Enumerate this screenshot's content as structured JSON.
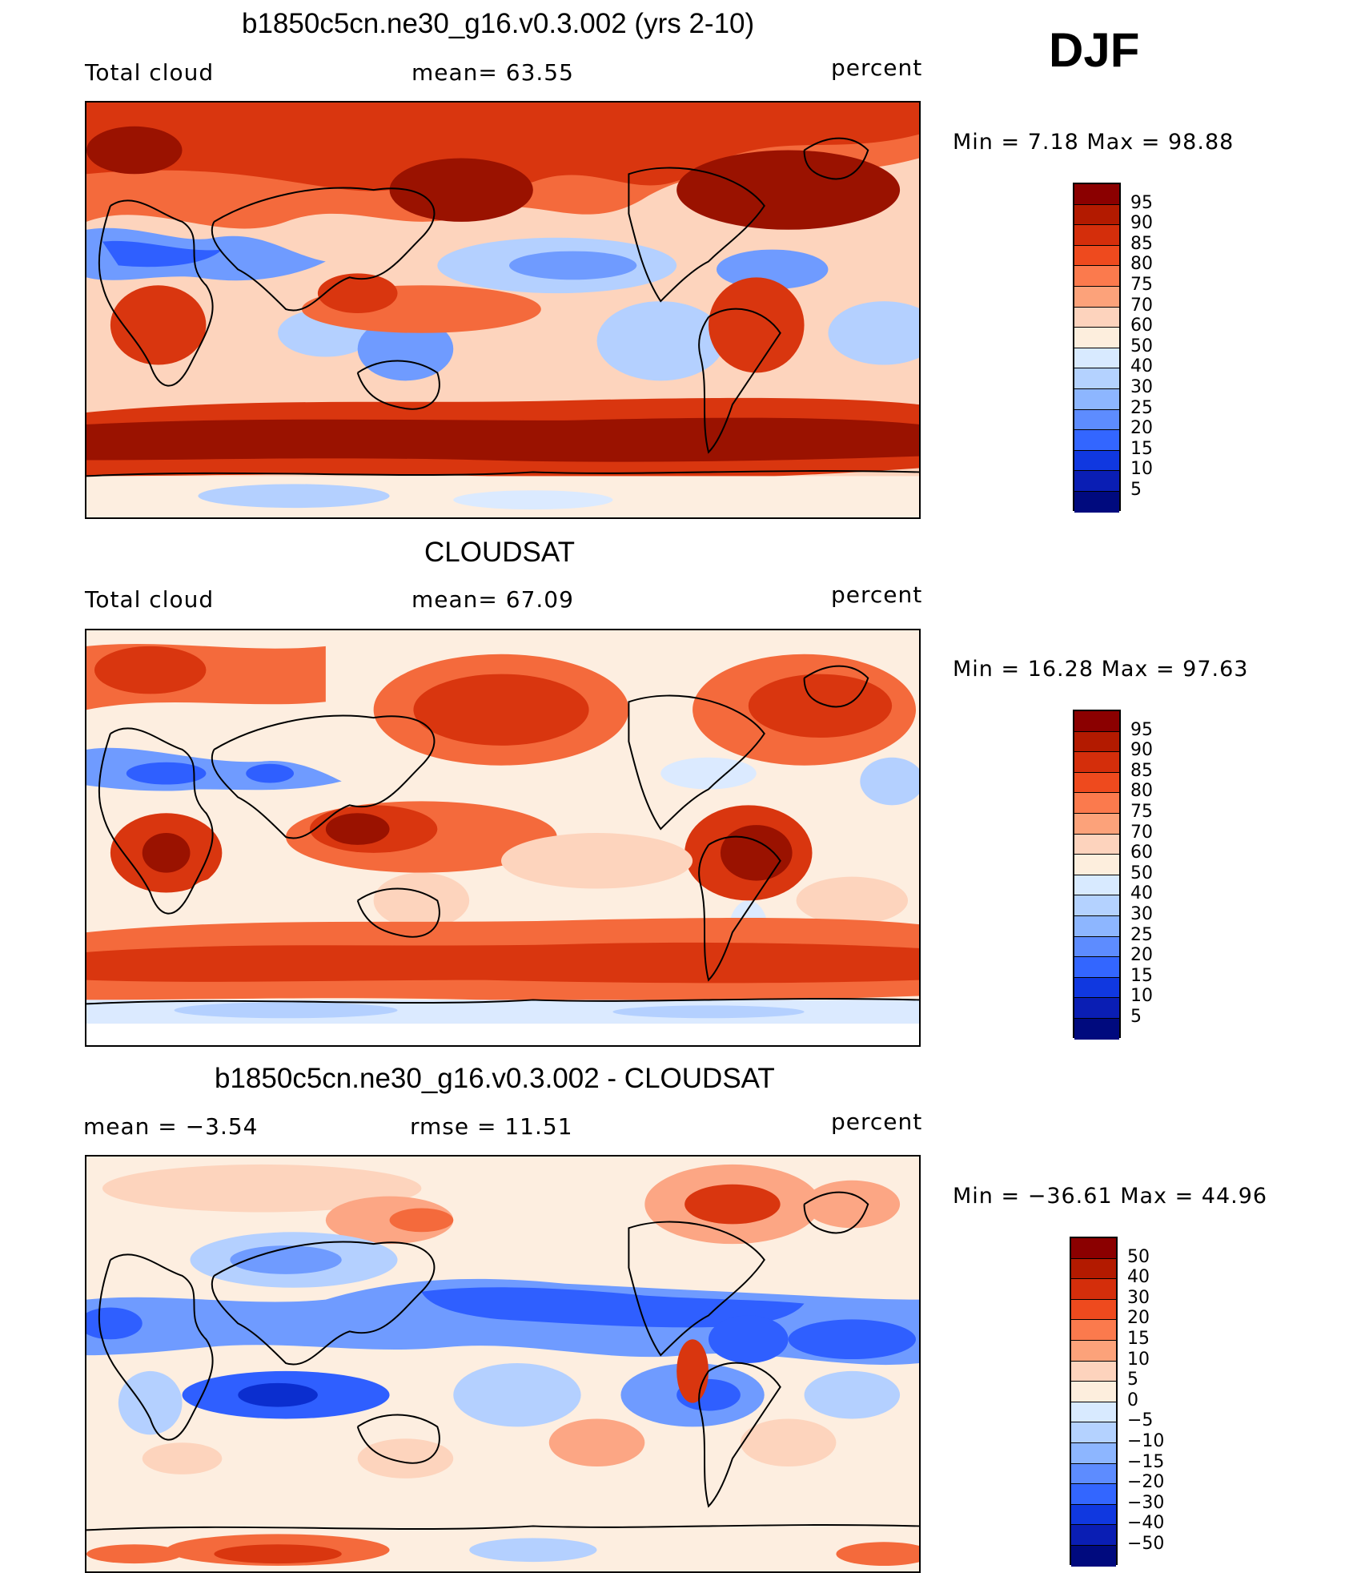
{
  "season": "DJF",
  "panels": [
    {
      "title": "b1850c5cn.ne30_g16.v0.3.002 (yrs 2-10)",
      "left_label": "Total cloud",
      "center_label": "mean=   63.55",
      "right_label": "percent",
      "minmax": "Min =    7.18  Max =    98.88"
    },
    {
      "title": "CLOUDSAT",
      "left_label": "Total cloud",
      "center_label": "mean=   67.09",
      "right_label": "percent",
      "minmax": "Min =   16.28  Max =   97.63"
    },
    {
      "title": "b1850c5cn.ne30_g16.v0.3.002 - CLOUDSAT",
      "left_label": "mean =   −3.54",
      "center_label": "rmse =   11.51",
      "right_label": "percent",
      "minmax": "Min = −36.61  Max =   44.96"
    }
  ],
  "colorbars": {
    "abs": {
      "labels": [
        "95",
        "90",
        "85",
        "80",
        "75",
        "70",
        "60",
        "50",
        "40",
        "30",
        "25",
        "20",
        "15",
        "10",
        "5"
      ],
      "colors": [
        "#8b0000",
        "#b31a00",
        "#d42e0b",
        "#ee4a1e",
        "#fb7a4d",
        "#fca27a",
        "#fdd3bd",
        "#fdeedd",
        "#d8eaff",
        "#b4d2ff",
        "#8db6ff",
        "#5d8cff",
        "#3366ff",
        "#1038e0",
        "#0a1eb4",
        "#000a7e"
      ]
    },
    "diff": {
      "labels": [
        "50",
        "40",
        "30",
        "20",
        "15",
        "10",
        "5",
        "0",
        "−5",
        "−10",
        "−15",
        "−20",
        "−30",
        "−40",
        "−50"
      ],
      "colors": [
        "#8b0000",
        "#b31a00",
        "#d42e0b",
        "#ee4a1e",
        "#fb7a4d",
        "#fca27a",
        "#fdd3bd",
        "#fdeedd",
        "#d8eaff",
        "#b4d2ff",
        "#8db6ff",
        "#5d8cff",
        "#3366ff",
        "#1038e0",
        "#0a1eb4",
        "#000a7e"
      ]
    }
  },
  "map_palette": {
    "deep_red": "#9a1200",
    "red": "#d9360f",
    "orange": "#f46a3c",
    "salmon": "#fca684",
    "light_salmon": "#fdd4bd",
    "cream": "#fdeee0",
    "pale_blue": "#dbeaff",
    "light_blue": "#b4d0ff",
    "blue": "#6f9bff",
    "strong_blue": "#2f5fff",
    "deep_blue": "#0b2ecf"
  }
}
